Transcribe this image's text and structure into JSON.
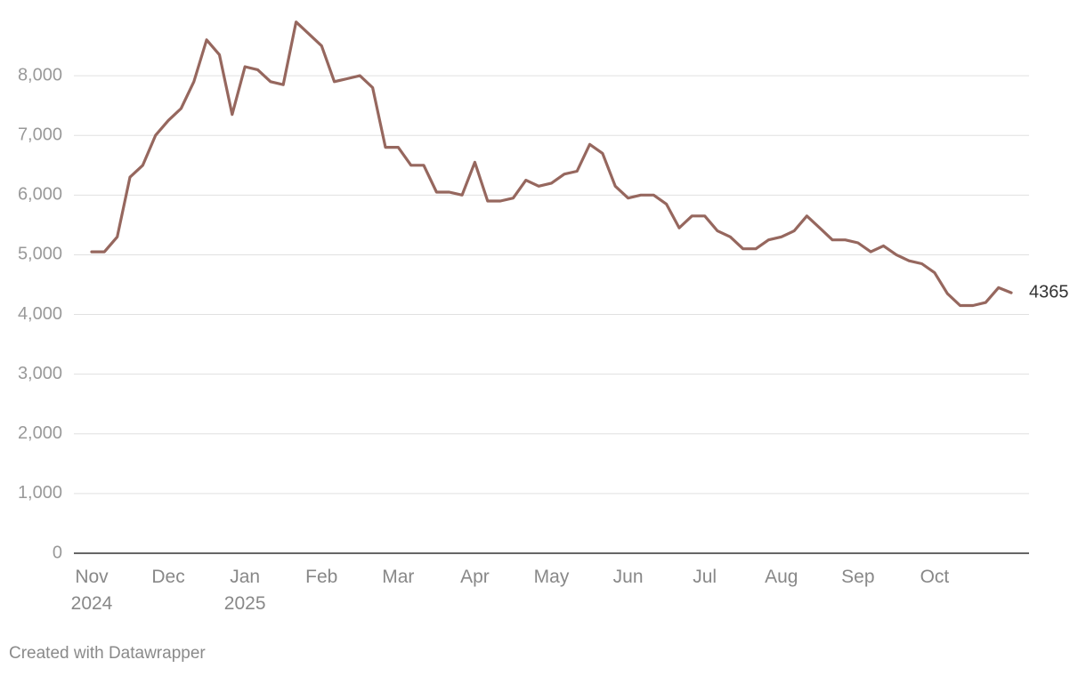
{
  "chart_data": {
    "type": "line",
    "source": "Created with Datawrapper",
    "categories": [
      "Nov\n2024",
      null,
      null,
      null,
      null,
      null,
      "Dec",
      null,
      null,
      null,
      null,
      null,
      "Jan\n2025",
      null,
      null,
      null,
      null,
      null,
      "Feb",
      null,
      null,
      null,
      null,
      null,
      "Mar",
      null,
      null,
      null,
      null,
      null,
      "Apr",
      null,
      null,
      null,
      null,
      null,
      "May",
      null,
      null,
      null,
      null,
      null,
      "Jun",
      null,
      null,
      null,
      null,
      null,
      "Jul",
      null,
      null,
      null,
      null,
      null,
      "Aug",
      null,
      null,
      null,
      null,
      null,
      "Sep",
      null,
      null,
      null,
      null,
      null,
      "Oct",
      null,
      null,
      null,
      null,
      null,
      null
    ],
    "series": [
      {
        "color": "#96675e",
        "values": [
          5050,
          5050,
          5300,
          6300,
          6500,
          7000,
          7250,
          7450,
          7900,
          8600,
          8350,
          7350,
          8150,
          8100,
          7900,
          7850,
          8900,
          8700,
          8500,
          7900,
          7950,
          8000,
          7800,
          6800,
          6800,
          6500,
          6500,
          6050,
          6050,
          6000,
          6550,
          5900,
          5900,
          5950,
          6250,
          6150,
          6200,
          6350,
          6400,
          6850,
          6700,
          6150,
          5950,
          6000,
          6000,
          5850,
          5450,
          5650,
          5650,
          5400,
          5300,
          5100,
          5100,
          5250,
          5300,
          5400,
          5650,
          5450,
          5250,
          5250,
          5200,
          5050,
          5150,
          5000,
          4900,
          4850,
          4700,
          4350,
          4150,
          4150,
          4200,
          4450,
          4365
        ]
      }
    ],
    "ylim": [
      0,
      9000
    ],
    "yticks": [
      0,
      {
        "value": 1000,
        "label": "1,000"
      },
      {
        "value": 2000,
        "label": "2,000"
      },
      {
        "value": 3000,
        "label": "3,000"
      },
      {
        "value": 4000,
        "label": "4,000"
      },
      {
        "value": 5000,
        "label": "5,000"
      },
      {
        "value": 6000,
        "label": "6,000"
      },
      {
        "value": 7000,
        "label": "7,000"
      },
      {
        "value": 8000,
        "label": "8,000"
      }
    ],
    "grid": true
  }
}
